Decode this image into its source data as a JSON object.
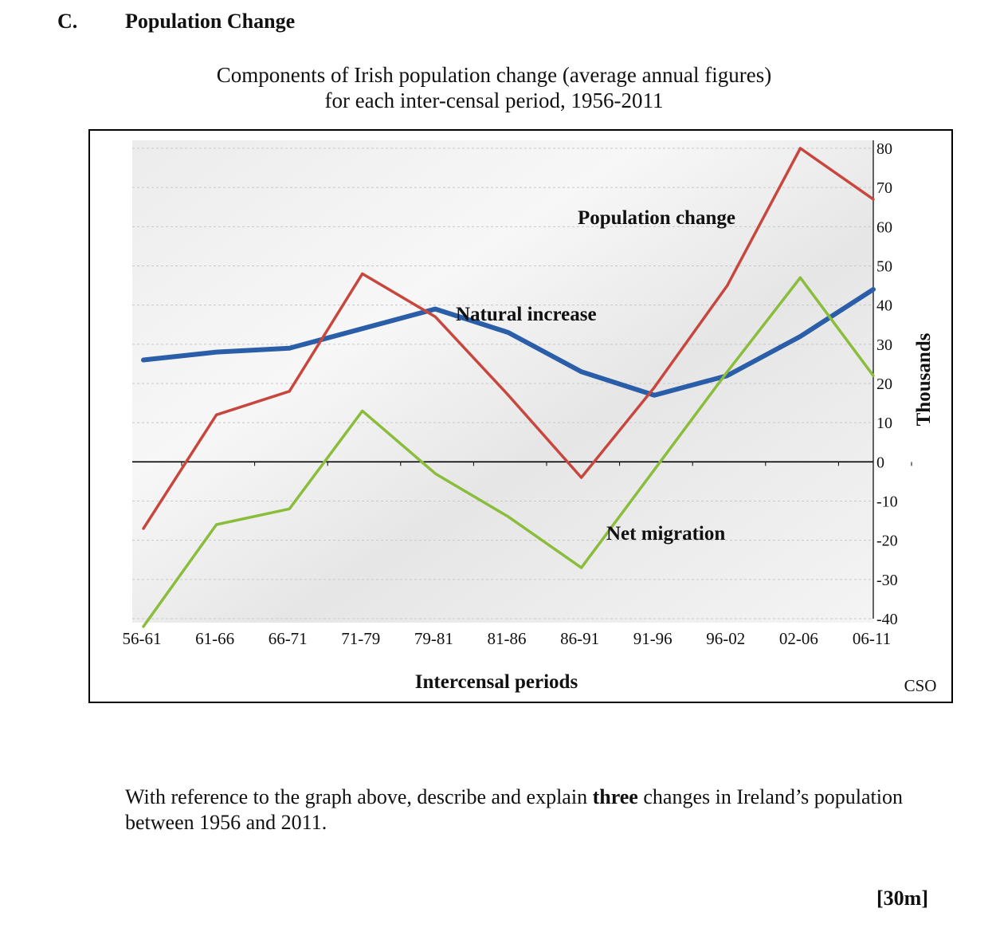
{
  "header": {
    "section_letter": "C.",
    "section_title": "Population Change"
  },
  "chart_title_lines": [
    "Components of Irish population change (average annual figures)",
    "for each inter-censal period, 1956-2011"
  ],
  "chart_data": {
    "type": "line",
    "title": "Components of Irish population change (average annual figures) for each inter-censal period, 1956-2011",
    "categories": [
      "56-61",
      "61-66",
      "66-71",
      "71-79",
      "79-81",
      "81-86",
      "86-91",
      "91-96",
      "96-02",
      "02-06",
      "06-11"
    ],
    "xlabel": "Intercensal periods",
    "ylabel": "Thousands",
    "ylim": [
      -40,
      80
    ],
    "yticks": [
      "80",
      "70",
      "60",
      "50",
      "40",
      "30",
      "20",
      "10",
      "0",
      "-10",
      "-20",
      "-30",
      "-40"
    ],
    "source": "CSO",
    "series": [
      {
        "name": "Natural increase",
        "color": "#2b5ea8",
        "values": [
          26,
          28,
          29,
          34,
          39,
          33,
          23,
          17,
          22,
          32,
          44
        ]
      },
      {
        "name": "Population change",
        "color": "#c7473e",
        "values": [
          -17,
          12,
          18,
          48,
          37,
          17,
          -4,
          19,
          45,
          80,
          67
        ]
      },
      {
        "name": "Net migration",
        "color": "#8bbd3c",
        "values": [
          -42,
          -16,
          -12,
          13,
          -3,
          -14,
          -27,
          -2,
          23,
          47,
          22
        ]
      }
    ],
    "annotations": [
      "Population change",
      "Natural increase",
      "Net migration"
    ],
    "grid": true,
    "legend": "inline labels"
  },
  "question": {
    "before": "With reference to the graph above, describe and explain ",
    "bold": "three",
    "after": " changes in Ireland’s population between 1956 and 2011."
  },
  "marks": "[30m]"
}
